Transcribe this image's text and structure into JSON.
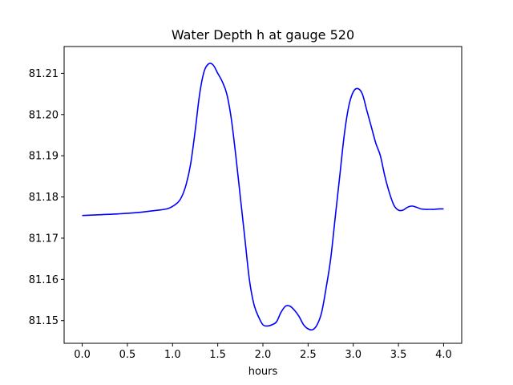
{
  "chart_data": {
    "type": "line",
    "title": "Water Depth h at gauge 520",
    "xlabel": "hours",
    "ylabel": "",
    "xlim": [
      -0.2,
      4.2
    ],
    "ylim": [
      81.1445,
      81.2165
    ],
    "grid": false,
    "x_ticks": [
      0.0,
      0.5,
      1.0,
      1.5,
      2.0,
      2.5,
      3.0,
      3.5,
      4.0
    ],
    "x_tick_labels": [
      "0.0",
      "0.5",
      "1.0",
      "1.5",
      "2.0",
      "2.5",
      "3.0",
      "3.5",
      "4.0"
    ],
    "y_ticks": [
      81.15,
      81.16,
      81.17,
      81.18,
      81.19,
      81.2,
      81.21
    ],
    "y_tick_labels": [
      "81.15",
      "81.16",
      "81.17",
      "81.18",
      "81.19",
      "81.20",
      "81.21"
    ],
    "series": [
      {
        "color": "#0000ff",
        "x": [
          0.0,
          0.2,
          0.4,
          0.6,
          0.8,
          0.95,
          1.05,
          1.1,
          1.15,
          1.2,
          1.25,
          1.3,
          1.35,
          1.4,
          1.45,
          1.5,
          1.55,
          1.6,
          1.65,
          1.7,
          1.75,
          1.8,
          1.85,
          1.9,
          1.95,
          2.0,
          2.05,
          2.1,
          2.15,
          2.2,
          2.25,
          2.3,
          2.35,
          2.4,
          2.45,
          2.5,
          2.55,
          2.6,
          2.65,
          2.7,
          2.75,
          2.8,
          2.85,
          2.9,
          2.95,
          3.0,
          3.05,
          3.1,
          3.15,
          3.2,
          3.25,
          3.3,
          3.35,
          3.4,
          3.45,
          3.5,
          3.55,
          3.6,
          3.65,
          3.7,
          3.75,
          3.8,
          3.85,
          3.9,
          3.95,
          4.0
        ],
        "y": [
          81.1755,
          81.1757,
          81.1759,
          81.1762,
          81.1767,
          81.1772,
          81.1785,
          81.18,
          81.183,
          81.188,
          81.196,
          81.205,
          81.2105,
          81.2123,
          81.212,
          81.21,
          81.208,
          81.205,
          81.199,
          81.19,
          81.18,
          81.17,
          81.16,
          81.154,
          81.151,
          81.149,
          81.1487,
          81.149,
          81.1497,
          81.152,
          81.1535,
          81.1535,
          81.1525,
          81.151,
          81.149,
          81.148,
          81.1478,
          81.149,
          81.152,
          81.158,
          81.165,
          81.175,
          81.185,
          81.195,
          81.202,
          81.2055,
          81.2063,
          81.205,
          81.201,
          81.197,
          81.193,
          81.19,
          81.185,
          81.181,
          81.178,
          81.1768,
          81.1768,
          81.1775,
          81.1778,
          81.1775,
          81.1771,
          81.177,
          81.177,
          81.177,
          81.1771,
          81.1771
        ]
      }
    ]
  }
}
